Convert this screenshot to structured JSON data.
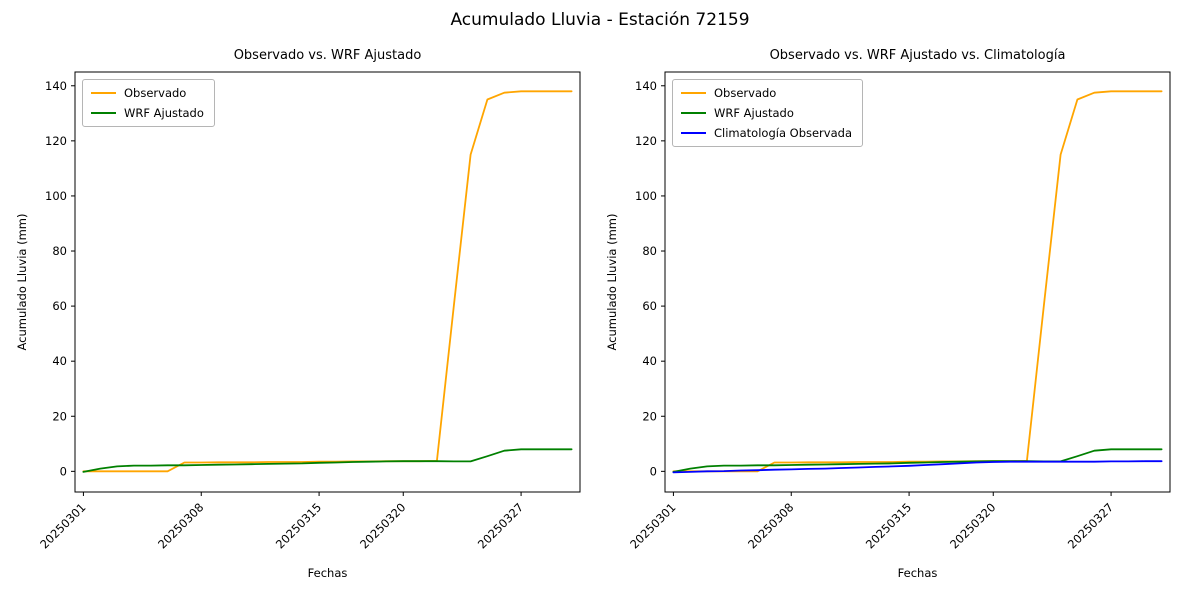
{
  "figure": {
    "title": "Acumulado Lluvia - Estación 72159",
    "background": "#ffffff"
  },
  "chart_data": [
    {
      "type": "line",
      "title": "Observado vs. WRF Ajustado",
      "xlabel": "Fechas",
      "ylabel": "Acumulado Lluvia (mm)",
      "grid": false,
      "legend_position": "upper left",
      "ylim": [
        -7.5,
        145
      ],
      "yticks": [
        0,
        20,
        40,
        60,
        80,
        100,
        120,
        140
      ],
      "x": [
        "20250301",
        "20250302",
        "20250303",
        "20250304",
        "20250305",
        "20250306",
        "20250307",
        "20250308",
        "20250309",
        "20250310",
        "20250311",
        "20250312",
        "20250313",
        "20250314",
        "20250315",
        "20250316",
        "20250317",
        "20250318",
        "20250319",
        "20250320",
        "20250321",
        "20250322",
        "20250323",
        "20250324",
        "20250325",
        "20250326",
        "20250327",
        "20250328",
        "20250329",
        "20250330"
      ],
      "xtick_labels": [
        "20250301",
        "20250308",
        "20250315",
        "20250320",
        "20250327"
      ],
      "series": [
        {
          "name": "Observado",
          "color": "#ffa500",
          "values": [
            0,
            0,
            0,
            0,
            0,
            0,
            3.2,
            3.2,
            3.3,
            3.3,
            3.3,
            3.4,
            3.4,
            3.4,
            3.5,
            3.5,
            3.6,
            3.6,
            3.7,
            3.7,
            3.7,
            3.8,
            60,
            115,
            135,
            137.5,
            138,
            138,
            138,
            138
          ]
        },
        {
          "name": "WRF Ajustado",
          "color": "#008000",
          "values": [
            -0.2,
            1.0,
            1.8,
            2.1,
            2.1,
            2.2,
            2.2,
            2.3,
            2.4,
            2.5,
            2.6,
            2.7,
            2.8,
            2.9,
            3.1,
            3.2,
            3.4,
            3.5,
            3.6,
            3.7,
            3.7,
            3.7,
            3.6,
            3.6,
            5.5,
            7.5,
            8,
            8,
            8,
            8
          ]
        }
      ]
    },
    {
      "type": "line",
      "title": "Observado vs. WRF Ajustado vs. Climatología",
      "xlabel": "Fechas",
      "ylabel": "Acumulado Lluvia (mm)",
      "grid": false,
      "legend_position": "upper left",
      "ylim": [
        -7.5,
        145
      ],
      "yticks": [
        0,
        20,
        40,
        60,
        80,
        100,
        120,
        140
      ],
      "x": [
        "20250301",
        "20250302",
        "20250303",
        "20250304",
        "20250305",
        "20250306",
        "20250307",
        "20250308",
        "20250309",
        "20250310",
        "20250311",
        "20250312",
        "20250313",
        "20250314",
        "20250315",
        "20250316",
        "20250317",
        "20250318",
        "20250319",
        "20250320",
        "20250321",
        "20250322",
        "20250323",
        "20250324",
        "20250325",
        "20250326",
        "20250327",
        "20250328",
        "20250329",
        "20250330"
      ],
      "xtick_labels": [
        "20250301",
        "20250308",
        "20250315",
        "20250320",
        "20250327"
      ],
      "series": [
        {
          "name": "Observado",
          "color": "#ffa500",
          "values": [
            0,
            0,
            0,
            0,
            0,
            0,
            3.2,
            3.2,
            3.3,
            3.3,
            3.3,
            3.4,
            3.4,
            3.4,
            3.5,
            3.5,
            3.6,
            3.6,
            3.7,
            3.7,
            3.7,
            3.8,
            60,
            115,
            135,
            137.5,
            138,
            138,
            138,
            138
          ]
        },
        {
          "name": "WRF Ajustado",
          "color": "#008000",
          "values": [
            -0.2,
            1.0,
            1.8,
            2.1,
            2.1,
            2.2,
            2.2,
            2.3,
            2.4,
            2.5,
            2.6,
            2.7,
            2.8,
            2.9,
            3.1,
            3.2,
            3.4,
            3.5,
            3.6,
            3.7,
            3.7,
            3.7,
            3.6,
            3.6,
            5.5,
            7.5,
            8,
            8,
            8,
            8
          ]
        },
        {
          "name": "Climatología Observada",
          "color": "#0000ff",
          "values": [
            -0.4,
            -0.2,
            0,
            0.1,
            0.3,
            0.4,
            0.6,
            0.7,
            0.9,
            1.0,
            1.2,
            1.4,
            1.6,
            1.8,
            2.0,
            2.3,
            2.6,
            2.9,
            3.2,
            3.4,
            3.5,
            3.5,
            3.5,
            3.5,
            3.5,
            3.5,
            3.6,
            3.6,
            3.7,
            3.7
          ]
        }
      ]
    }
  ]
}
